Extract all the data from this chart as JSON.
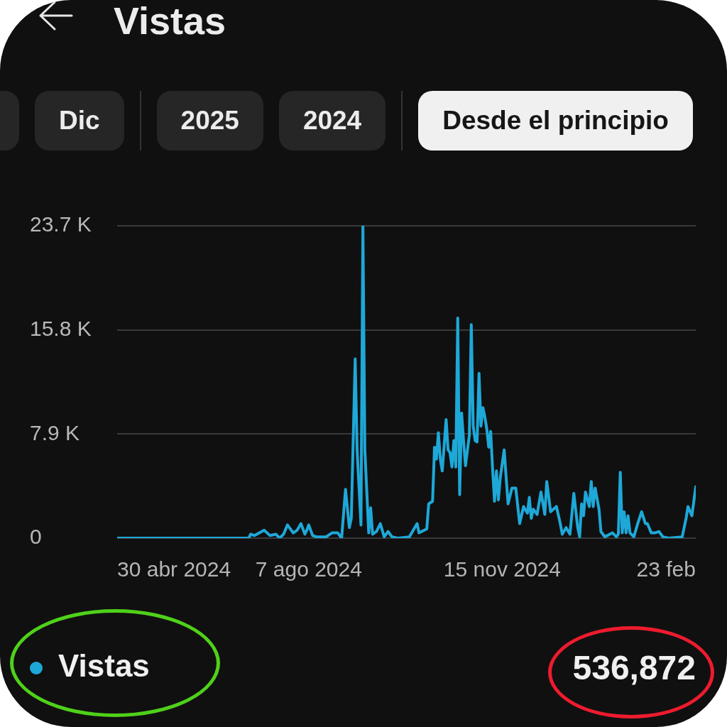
{
  "chart_data": {
    "type": "line",
    "title": "Vistas",
    "x": [
      "2024-04-30",
      "2024-07-07",
      "2024-07-08",
      "2024-07-10",
      "2024-07-15",
      "2024-07-18",
      "2024-07-21",
      "2024-07-23",
      "2024-07-25",
      "2024-07-27",
      "2024-07-30",
      "2024-08-01",
      "2024-08-03",
      "2024-08-05",
      "2024-08-06",
      "2024-08-07",
      "2024-08-09",
      "2024-08-11",
      "2024-08-16",
      "2024-08-19",
      "2024-08-22",
      "2024-08-24",
      "2024-08-26",
      "2024-08-28",
      "2024-08-29",
      "2024-08-31",
      "2024-09-01",
      "2024-09-03",
      "2024-09-04",
      "2024-09-05",
      "2024-09-07",
      "2024-09-08",
      "2024-09-09",
      "2024-09-11",
      "2024-09-13",
      "2024-09-15",
      "2024-09-17",
      "2024-09-19",
      "2024-09-22",
      "2024-09-28",
      "2024-10-02",
      "2024-10-03",
      "2024-10-07",
      "2024-10-08",
      "2024-10-10",
      "2024-10-11",
      "2024-10-12",
      "2024-10-13",
      "2024-10-14",
      "2024-10-15",
      "2024-10-17",
      "2024-10-18",
      "2024-10-19",
      "2024-10-20",
      "2024-10-21",
      "2024-10-22",
      "2024-10-23",
      "2024-10-24",
      "2024-10-25",
      "2024-10-26",
      "2024-10-27",
      "2024-10-29",
      "2024-10-30",
      "2024-10-31",
      "2024-11-01",
      "2024-11-02",
      "2024-11-03",
      "2024-11-04",
      "2024-11-05",
      "2024-11-06",
      "2024-11-07",
      "2024-11-08",
      "2024-11-09",
      "2024-11-10",
      "2024-11-11",
      "2024-11-12",
      "2024-11-13",
      "2024-11-14",
      "2024-11-16",
      "2024-11-18",
      "2024-11-20",
      "2024-11-22",
      "2024-11-24",
      "2024-11-26",
      "2024-11-28",
      "2024-11-29",
      "2024-11-30",
      "2024-12-01",
      "2024-12-03",
      "2024-12-05",
      "2024-12-07",
      "2024-12-08",
      "2024-12-10",
      "2024-12-13",
      "2024-12-15",
      "2024-12-16",
      "2024-12-18",
      "2024-12-20",
      "2024-12-22",
      "2024-12-24",
      "2024-12-25",
      "2024-12-26",
      "2024-12-27",
      "2024-12-28",
      "2024-12-30",
      "2024-12-31",
      "2025-01-01",
      "2025-01-02",
      "2025-01-04",
      "2025-01-05",
      "2025-01-07",
      "2025-01-11",
      "2025-01-13",
      "2025-01-14",
      "2025-01-15",
      "2025-01-16",
      "2025-01-17",
      "2025-01-18",
      "2025-01-19",
      "2025-01-20",
      "2025-01-22",
      "2025-01-24",
      "2025-01-26",
      "2025-01-28",
      "2025-01-29",
      "2025-01-31",
      "2025-02-02",
      "2025-02-04",
      "2025-02-06",
      "2025-02-09",
      "2025-02-16",
      "2025-02-18",
      "2025-02-19",
      "2025-02-21",
      "2025-02-23"
    ],
    "series": [
      {
        "name": "Vistas",
        "color": "#1ea8d8",
        "values": [
          0,
          0,
          300,
          200,
          600,
          200,
          300,
          0,
          300,
          1000,
          400,
          600,
          1100,
          300,
          600,
          1000,
          200,
          100,
          100,
          400,
          400,
          0,
          3700,
          800,
          1500,
          13600,
          6700,
          1000,
          23700,
          6700,
          400,
          2300,
          300,
          500,
          1100,
          100,
          500,
          100,
          0,
          100,
          1100,
          400,
          700,
          2600,
          2800,
          6900,
          6000,
          8000,
          6000,
          5100,
          9000,
          6700,
          6500,
          5400,
          7400,
          5400,
          16700,
          3300,
          9500,
          7400,
          5500,
          7800,
          16200,
          8500,
          7400,
          7300,
          12500,
          8500,
          9900,
          9200,
          8300,
          6900,
          8100,
          5300,
          2800,
          5100,
          2900,
          4600,
          6700,
          2600,
          3800,
          3800,
          1100,
          2400,
          1900,
          3100,
          1500,
          2200,
          1800,
          3500,
          1800,
          4300,
          2000,
          2400,
          1100,
          300,
          800,
          300,
          3400,
          800,
          100,
          2600,
          1700,
          3500,
          2400,
          4300,
          2400,
          3800,
          2200,
          500,
          100,
          400,
          100,
          300,
          5000,
          400,
          2000,
          400,
          1700,
          400,
          100,
          1100,
          2000,
          1100,
          1100,
          400,
          400,
          500,
          100,
          0,
          100,
          1500,
          2400,
          1700,
          3900
        ]
      }
    ],
    "xlim": [
      "2024-04-30",
      "2025-02-23"
    ],
    "xticks": [
      {
        "value": "2024-04-30",
        "label": "30 abr 2024"
      },
      {
        "value": "2024-08-07",
        "label": "7 ago 2024"
      },
      {
        "value": "2024-11-15",
        "label": "15 nov 2024"
      },
      {
        "value": "2025-02-23",
        "label": "23 feb"
      }
    ],
    "ylim": [
      0,
      23700
    ],
    "yticks": [
      0,
      {
        "value": 7900,
        "label": "7.9 K"
      },
      {
        "value": 15800,
        "label": "15.8 K"
      },
      {
        "value": 23700,
        "label": "23.7 K"
      }
    ],
    "grid": "y",
    "legend": "bottom left",
    "marker": "none",
    "line_style": "solid",
    "annotations": [
      "Dic",
      "2025",
      "2024",
      "Desde el principio",
      "536,872"
    ]
  }
}
